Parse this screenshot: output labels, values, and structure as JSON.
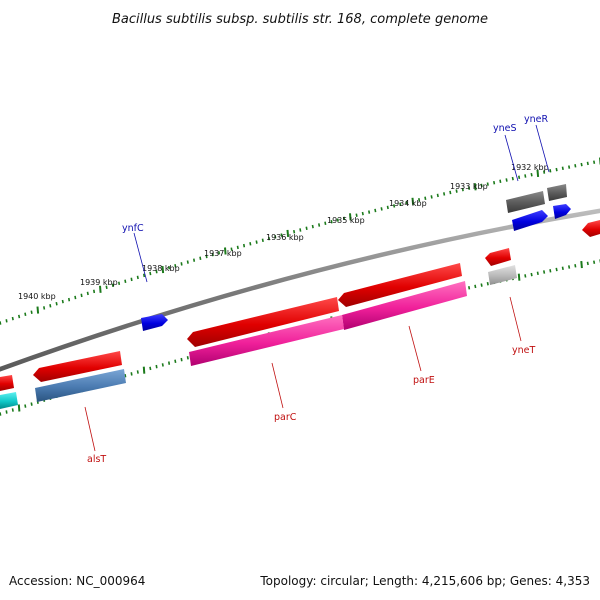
{
  "title": "Bacillus subtilis subsp. subtilis str. 168, complete genome",
  "footer": {
    "accession": "Accession: NC_000964",
    "summary": "Topology: circular; Length: 4,215,606 bp; Genes: 4,353"
  },
  "colors": {
    "backbone": "#8c8c8c",
    "tick": "#1b7a1b",
    "forward_label": "#1010b0",
    "reverse_label": "#c01010"
  },
  "kbp_labels": [
    "1932 kbp",
    "1933 kbp",
    "1934 kbp",
    "1935 kbp",
    "1936 kbp",
    "1937 kbp",
    "1938 kbp",
    "1939 kbp",
    "1940 kbp"
  ],
  "genes": [
    {
      "name": "yneR",
      "color": "#1010b0"
    },
    {
      "name": "yneS",
      "color": "#1010b0"
    },
    {
      "name": "ynfC",
      "color": "#1010b0"
    },
    {
      "name": "yneT",
      "color": "#c01010"
    },
    {
      "name": "parE",
      "color": "#c01010"
    },
    {
      "name": "parC",
      "color": "#c01010"
    },
    {
      "name": "alsT",
      "color": "#c01010"
    }
  ]
}
